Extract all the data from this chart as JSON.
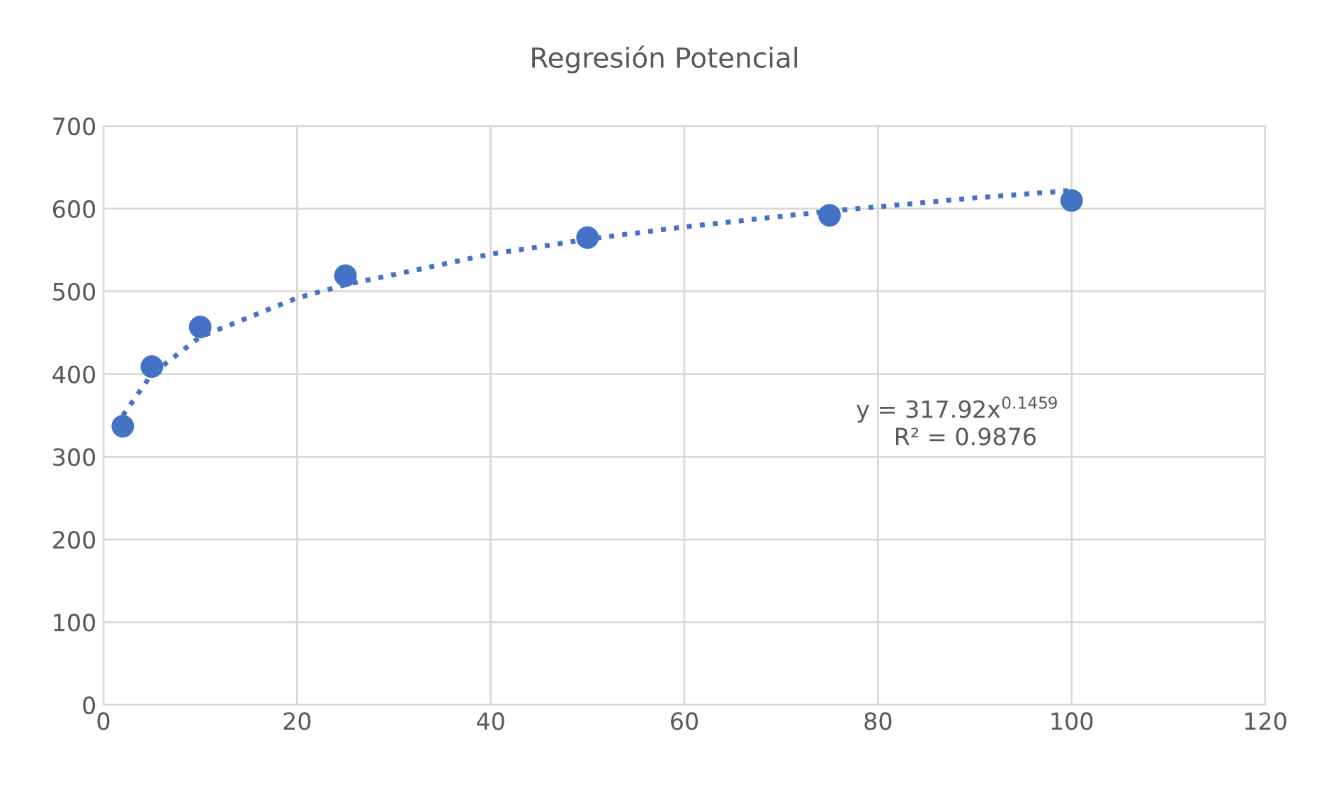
{
  "chart_data": {
    "type": "scatter",
    "title": "Regresión Potencial",
    "series": [
      {
        "color": "#4472c4",
        "x": [
          2,
          5,
          10,
          25,
          50,
          75,
          100
        ],
        "values": [
          337,
          409,
          457,
          519,
          565,
          592,
          610
        ],
        "marker": "circle"
      },
      {
        "type": "line",
        "color": "#4472c4",
        "x": [
          2,
          5,
          10,
          20,
          25,
          40,
          50,
          60,
          75,
          90,
          100
        ],
        "values": [
          350,
          400,
          445,
          492,
          508,
          545,
          563,
          578,
          597,
          613,
          622
        ],
        "line_style": "dotted",
        "marker": "none"
      }
    ],
    "annotations": [
      "y = 317.92x$^{0.1459}$",
      "R² = 0.9876"
    ],
    "xlim": [
      0,
      120
    ],
    "xticks": [
      0,
      20,
      40,
      60,
      80,
      100,
      120
    ],
    "ylim": [
      0,
      700
    ],
    "yticks": [
      0,
      100,
      200,
      300,
      400,
      500,
      600,
      700
    ],
    "grid": true,
    "legend": false
  }
}
